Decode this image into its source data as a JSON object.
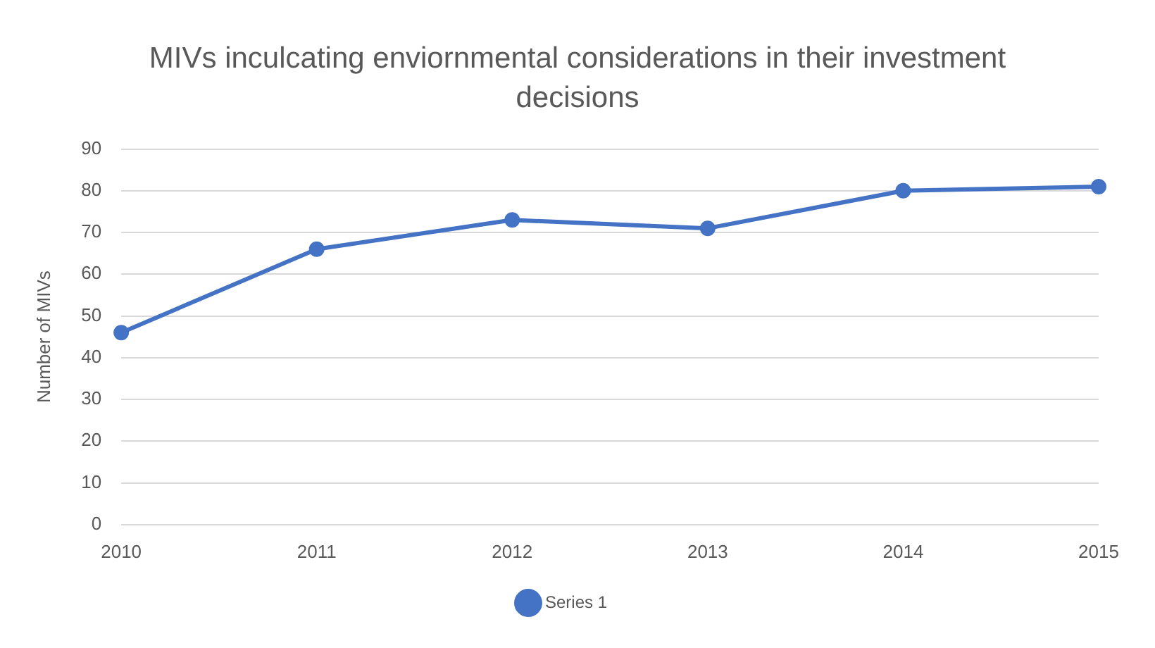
{
  "chart_data": {
    "type": "line",
    "title": "MIVs inculcating enviornmental considerations in their investment decisions",
    "ylabel": "Number of MIVs",
    "categories": [
      "2010",
      "2011",
      "2012",
      "2013",
      "2014",
      "2015"
    ],
    "series": [
      {
        "name": "Series 1",
        "color": "#4472c4",
        "values": [
          46,
          66,
          73,
          71,
          80,
          81
        ]
      }
    ],
    "ylim": [
      0,
      90
    ],
    "yticks": [
      0,
      10,
      20,
      30,
      40,
      50,
      60,
      70,
      80,
      90
    ],
    "grid": "y",
    "legend": "bottom",
    "marker": "circle",
    "line_style": "solid"
  }
}
